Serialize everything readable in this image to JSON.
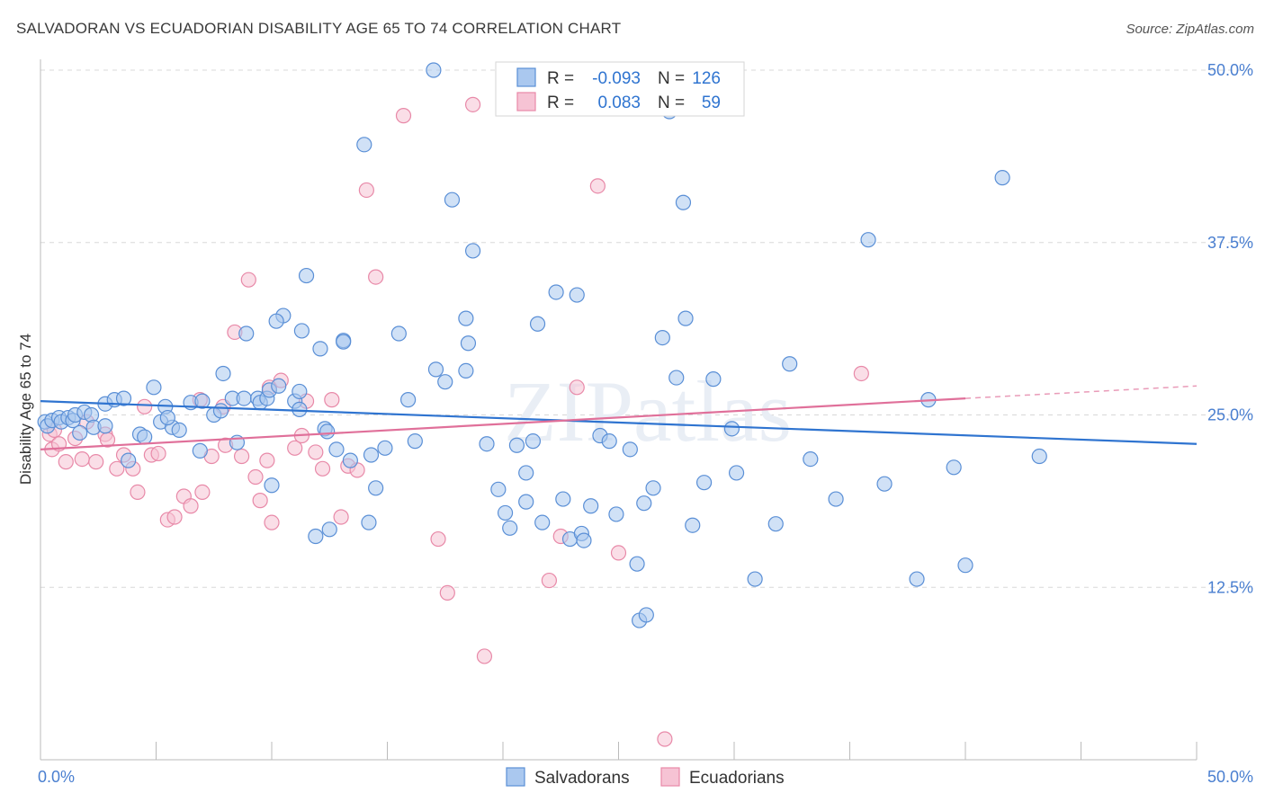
{
  "header": {
    "title": "SALVADORAN VS ECUADORIAN DISABILITY AGE 65 TO 74 CORRELATION CHART",
    "source": "Source: ZipAtlas.com"
  },
  "watermark": "ZIPatlas",
  "colors": {
    "blue": "#5a8fd6",
    "blue_fill": "#aac8ef",
    "blue_line": "#2f74d0",
    "pink": "#e889a8",
    "pink_fill": "#f6c3d4",
    "pink_line": "#e0709a",
    "tick_text": "#4a7fd0",
    "grid": "#d8d8d8"
  },
  "legend_top": [
    {
      "label": "R =",
      "r": "-0.093",
      "n_label": "N =",
      "n": "126",
      "series": "blue"
    },
    {
      "label": "R =",
      "r": "0.083",
      "n_label": "N =",
      "n": "59",
      "series": "pink"
    }
  ],
  "legend_bottom": [
    {
      "label": "Salvadorans",
      "series": "blue"
    },
    {
      "label": "Ecuadorians",
      "series": "pink"
    }
  ],
  "chart_data": {
    "type": "scatter",
    "title": "SALVADORAN VS ECUADORIAN DISABILITY AGE 65 TO 74 CORRELATION CHART",
    "xlabel": "",
    "ylabel": "Disability Age 65 to 74",
    "xlim": [
      0,
      50
    ],
    "ylim": [
      0,
      50
    ],
    "x_tick_labels": [
      "0.0%",
      "50.0%"
    ],
    "y_tick_labels": [
      "12.5%",
      "25.0%",
      "37.5%",
      "50.0%"
    ],
    "y_ticks": [
      12.5,
      25.0,
      37.5,
      50.0
    ],
    "grid": "horizontal dashed",
    "series": [
      {
        "name": "Salvadorans",
        "color": "blue",
        "trend": [
          [
            0,
            26.0
          ],
          [
            50,
            22.9
          ]
        ],
        "points": [
          [
            0.2,
            24.5
          ],
          [
            0.3,
            24.2
          ],
          [
            0.5,
            24.6
          ],
          [
            0.8,
            24.8
          ],
          [
            0.9,
            24.5
          ],
          [
            1.2,
            24.8
          ],
          [
            1.4,
            24.6
          ],
          [
            1.5,
            25.0
          ],
          [
            1.7,
            23.7
          ],
          [
            1.9,
            25.2
          ],
          [
            2.2,
            25.0
          ],
          [
            2.3,
            24.1
          ],
          [
            2.8,
            24.2
          ],
          [
            2.8,
            25.8
          ],
          [
            3.2,
            26.1
          ],
          [
            3.6,
            26.2
          ],
          [
            3.8,
            21.7
          ],
          [
            4.3,
            23.6
          ],
          [
            4.5,
            23.4
          ],
          [
            4.9,
            27.0
          ],
          [
            5.2,
            24.5
          ],
          [
            5.7,
            24.1
          ],
          [
            5.4,
            25.6
          ],
          [
            5.5,
            24.8
          ],
          [
            6.0,
            23.9
          ],
          [
            6.5,
            25.9
          ],
          [
            6.9,
            22.4
          ],
          [
            7.0,
            26.0
          ],
          [
            7.5,
            25.0
          ],
          [
            7.8,
            25.3
          ],
          [
            7.9,
            28.0
          ],
          [
            8.3,
            26.2
          ],
          [
            8.5,
            23.0
          ],
          [
            8.8,
            26.2
          ],
          [
            8.9,
            30.9
          ],
          [
            9.4,
            26.2
          ],
          [
            9.5,
            25.9
          ],
          [
            9.8,
            26.2
          ],
          [
            9.9,
            26.8
          ],
          [
            10.3,
            27.1
          ],
          [
            10.0,
            19.9
          ],
          [
            10.5,
            32.2
          ],
          [
            10.2,
            31.8
          ],
          [
            11.0,
            26.0
          ],
          [
            11.2,
            26.7
          ],
          [
            11.2,
            25.4
          ],
          [
            11.3,
            31.1
          ],
          [
            11.5,
            35.1
          ],
          [
            11.9,
            16.2
          ],
          [
            12.1,
            29.8
          ],
          [
            12.3,
            24.0
          ],
          [
            12.4,
            23.8
          ],
          [
            12.5,
            16.7
          ],
          [
            12.8,
            22.5
          ],
          [
            13.1,
            30.4
          ],
          [
            13.1,
            30.3
          ],
          [
            13.4,
            21.7
          ],
          [
            14.0,
            44.6
          ],
          [
            14.2,
            17.2
          ],
          [
            14.3,
            22.1
          ],
          [
            14.5,
            19.7
          ],
          [
            14.9,
            22.6
          ],
          [
            15.5,
            30.9
          ],
          [
            15.9,
            26.1
          ],
          [
            16.2,
            23.1
          ],
          [
            17.0,
            50.0
          ],
          [
            17.1,
            28.3
          ],
          [
            17.5,
            27.4
          ],
          [
            17.8,
            40.6
          ],
          [
            18.4,
            32.0
          ],
          [
            18.4,
            28.2
          ],
          [
            18.5,
            30.2
          ],
          [
            18.7,
            36.9
          ],
          [
            19.3,
            22.9
          ],
          [
            19.8,
            19.6
          ],
          [
            20.1,
            17.9
          ],
          [
            20.3,
            16.8
          ],
          [
            20.6,
            22.8
          ],
          [
            21.0,
            18.7
          ],
          [
            21.0,
            20.8
          ],
          [
            21.3,
            23.1
          ],
          [
            21.5,
            31.6
          ],
          [
            21.7,
            17.2
          ],
          [
            22.3,
            33.9
          ],
          [
            22.6,
            18.9
          ],
          [
            22.9,
            16.0
          ],
          [
            23.2,
            33.7
          ],
          [
            23.4,
            16.4
          ],
          [
            23.5,
            15.9
          ],
          [
            23.8,
            18.4
          ],
          [
            24.2,
            23.5
          ],
          [
            24.6,
            23.1
          ],
          [
            24.9,
            17.8
          ],
          [
            25.5,
            22.5
          ],
          [
            25.8,
            14.2
          ],
          [
            25.9,
            10.1
          ],
          [
            26.1,
            18.6
          ],
          [
            26.5,
            19.7
          ],
          [
            26.2,
            10.5
          ],
          [
            26.9,
            30.6
          ],
          [
            27.5,
            27.7
          ],
          [
            27.8,
            40.4
          ],
          [
            27.9,
            32.0
          ],
          [
            28.2,
            17.0
          ],
          [
            28.7,
            20.1
          ],
          [
            29.1,
            27.6
          ],
          [
            29.9,
            24.0
          ],
          [
            30.1,
            20.8
          ],
          [
            30.9,
            13.1
          ],
          [
            31.8,
            17.1
          ],
          [
            32.4,
            28.7
          ],
          [
            33.3,
            21.8
          ],
          [
            34.4,
            18.9
          ],
          [
            35.8,
            37.7
          ],
          [
            36.5,
            20.0
          ],
          [
            37.9,
            13.1
          ],
          [
            38.4,
            26.1
          ],
          [
            39.5,
            21.2
          ],
          [
            40.0,
            14.1
          ],
          [
            41.6,
            42.2
          ],
          [
            43.2,
            22.0
          ],
          [
            27.2,
            47.0
          ]
        ]
      },
      {
        "name": "Ecuadorians",
        "color": "pink",
        "trend": [
          [
            0,
            22.5
          ],
          [
            40,
            26.2
          ]
        ],
        "trend_dashed": [
          [
            40,
            26.2
          ],
          [
            50,
            27.1
          ]
        ],
        "points": [
          [
            0.4,
            23.6
          ],
          [
            0.5,
            22.5
          ],
          [
            0.6,
            23.9
          ],
          [
            0.8,
            22.9
          ],
          [
            1.1,
            21.6
          ],
          [
            1.5,
            23.3
          ],
          [
            1.8,
            21.8
          ],
          [
            2.0,
            24.5
          ],
          [
            2.4,
            21.6
          ],
          [
            2.8,
            23.6
          ],
          [
            2.9,
            23.2
          ],
          [
            3.3,
            21.1
          ],
          [
            3.6,
            22.1
          ],
          [
            4.0,
            21.1
          ],
          [
            4.2,
            19.4
          ],
          [
            4.5,
            25.6
          ],
          [
            4.8,
            22.1
          ],
          [
            5.1,
            22.2
          ],
          [
            5.5,
            17.4
          ],
          [
            5.8,
            17.6
          ],
          [
            6.2,
            19.1
          ],
          [
            6.5,
            18.4
          ],
          [
            6.9,
            26.1
          ],
          [
            7.0,
            19.4
          ],
          [
            7.4,
            22.0
          ],
          [
            7.9,
            25.6
          ],
          [
            8.0,
            22.8
          ],
          [
            8.4,
            31.0
          ],
          [
            8.7,
            22.0
          ],
          [
            9.0,
            34.8
          ],
          [
            9.3,
            20.5
          ],
          [
            9.5,
            18.8
          ],
          [
            9.8,
            21.7
          ],
          [
            9.9,
            27.0
          ],
          [
            10.0,
            17.2
          ],
          [
            10.4,
            27.5
          ],
          [
            11.0,
            22.6
          ],
          [
            11.3,
            23.5
          ],
          [
            11.5,
            26.0
          ],
          [
            11.9,
            22.3
          ],
          [
            12.2,
            21.1
          ],
          [
            12.6,
            26.1
          ],
          [
            13.0,
            17.6
          ],
          [
            13.3,
            21.3
          ],
          [
            13.7,
            21.0
          ],
          [
            14.1,
            41.3
          ],
          [
            14.5,
            35.0
          ],
          [
            15.7,
            46.7
          ],
          [
            17.2,
            16.0
          ],
          [
            17.6,
            12.1
          ],
          [
            18.7,
            47.5
          ],
          [
            19.2,
            7.5
          ],
          [
            22.0,
            13.0
          ],
          [
            22.5,
            16.2
          ],
          [
            23.2,
            27.0
          ],
          [
            24.1,
            41.6
          ],
          [
            25.0,
            15.0
          ],
          [
            27.0,
            1.5
          ],
          [
            35.5,
            28.0
          ]
        ]
      }
    ]
  }
}
